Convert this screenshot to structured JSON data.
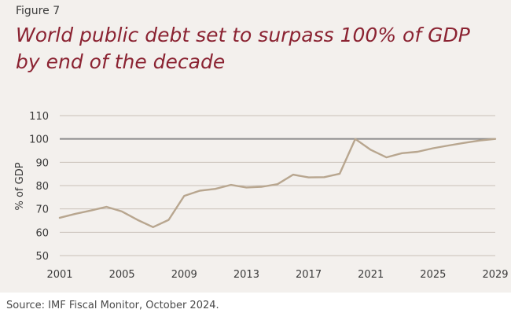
{
  "figure_label": "Figure 7",
  "title": "World public debt set to surpass 100% of GDP by end of the decade",
  "source": "Source: IMF Fiscal Monitor, October 2024.",
  "colors": {
    "title": "#8b2332",
    "line": "#b8a68f",
    "grid": "#c9c1b8",
    "reference_line": "#8a8a8a",
    "panel": "#f3f0ed"
  },
  "chart_data": {
    "type": "line",
    "ylabel": "% of GDP",
    "xlabel": "",
    "xlim": [
      2001,
      2029
    ],
    "ylim": [
      50,
      110
    ],
    "x_ticks": [
      "2001",
      "2005",
      "2009",
      "2013",
      "2017",
      "2021",
      "2025",
      "2029"
    ],
    "y_ticks": [
      "50",
      "60",
      "70",
      "80",
      "90",
      "100",
      "110"
    ],
    "grid": "horizontal",
    "reference_line": 100,
    "series": [
      {
        "x": [
          2001,
          2002,
          2003,
          2004,
          2005,
          2006,
          2007,
          2008,
          2009,
          2010,
          2011,
          2012,
          2013,
          2014,
          2015,
          2016,
          2017,
          2018,
          2019,
          2020,
          2021,
          2022,
          2023,
          2024,
          2025,
          2026,
          2027,
          2028,
          2029
        ],
        "values": [
          66.2,
          67.9,
          69.3,
          70.9,
          68.9,
          65.3,
          62.2,
          65.3,
          75.6,
          77.8,
          78.6,
          80.3,
          79.2,
          79.5,
          80.6,
          84.7,
          83.5,
          83.6,
          85.1,
          100.0,
          95.3,
          92.1,
          93.9,
          94.5,
          96.0,
          97.2,
          98.3,
          99.3,
          100.0
        ]
      }
    ]
  }
}
